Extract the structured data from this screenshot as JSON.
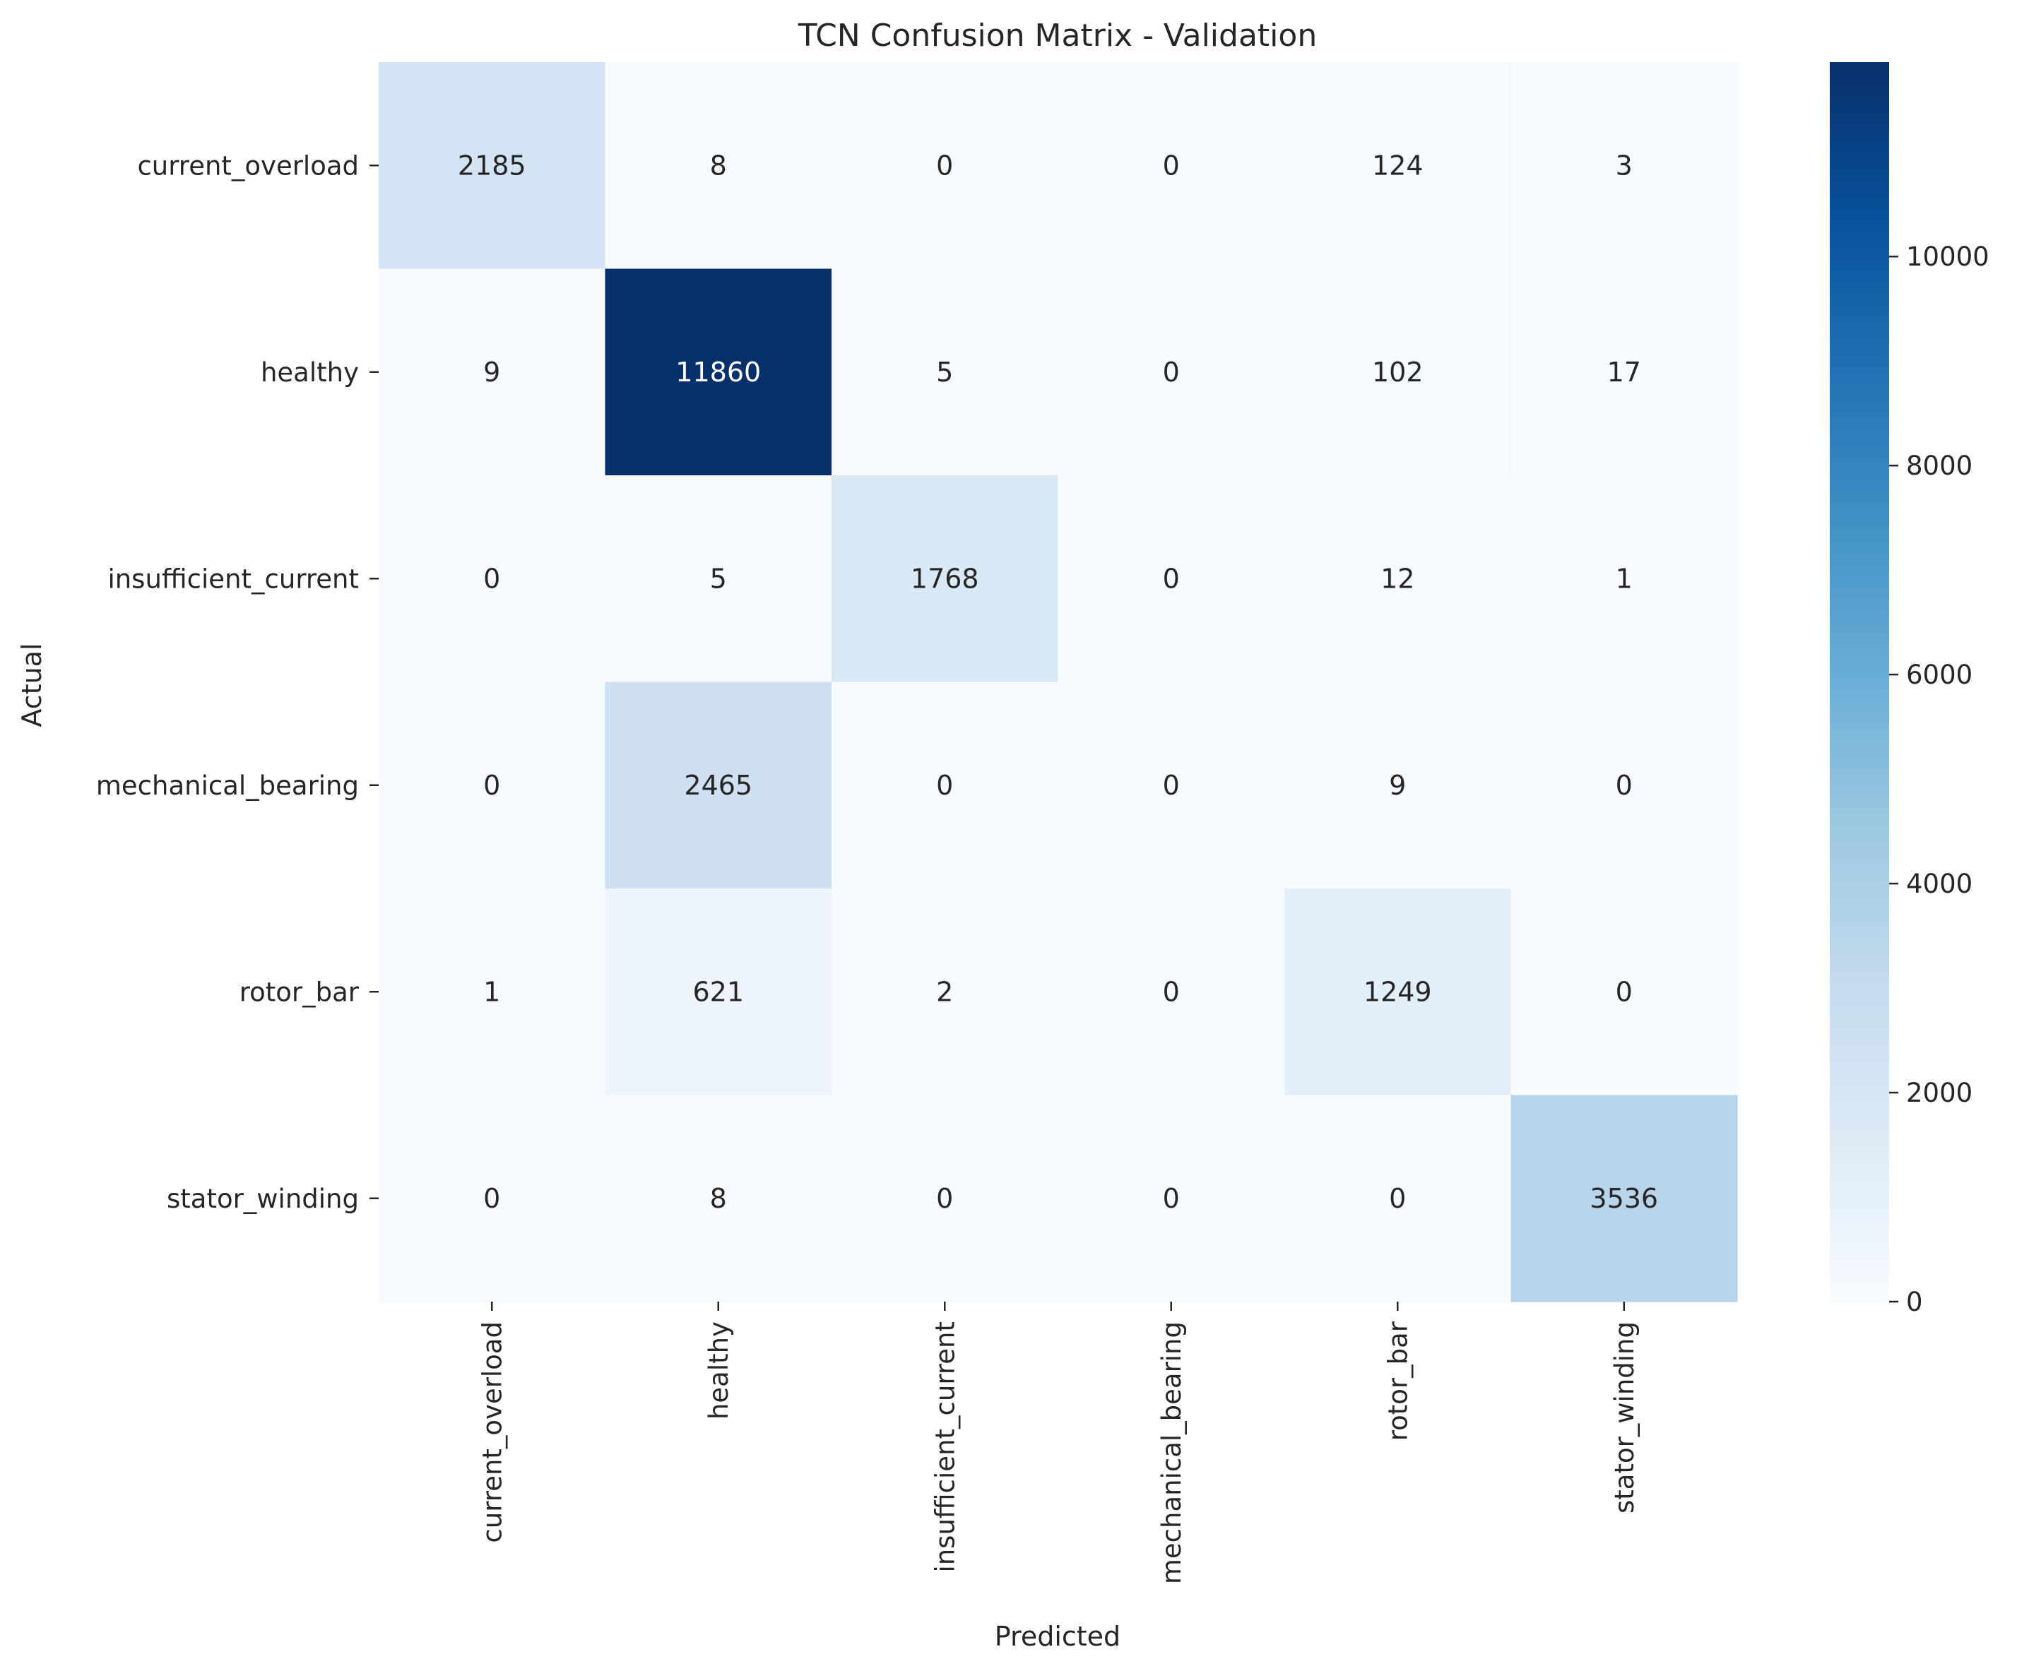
{
  "chart_data": {
    "type": "heatmap",
    "title": "TCN Confusion Matrix - Validation",
    "xlabel": "Predicted",
    "ylabel": "Actual",
    "x_categories": [
      "current_overload",
      "healthy",
      "insufficient_current",
      "mechanical_bearing",
      "rotor_bar",
      "stator_winding"
    ],
    "y_categories": [
      "current_overload",
      "healthy",
      "insufficient_current",
      "mechanical_bearing",
      "rotor_bar",
      "stator_winding"
    ],
    "values": [
      [
        2185,
        8,
        0,
        0,
        124,
        3
      ],
      [
        9,
        11860,
        5,
        0,
        102,
        17
      ],
      [
        0,
        5,
        1768,
        0,
        12,
        1
      ],
      [
        0,
        2465,
        0,
        0,
        9,
        0
      ],
      [
        1,
        621,
        2,
        0,
        1249,
        0
      ],
      [
        0,
        8,
        0,
        0,
        0,
        3536
      ]
    ],
    "colormap": "Blues",
    "colorbar": {
      "range": [
        0,
        11860
      ],
      "ticks": [
        0,
        2000,
        4000,
        6000,
        8000,
        10000
      ]
    },
    "grid": false,
    "legend": "colorbar-right"
  }
}
